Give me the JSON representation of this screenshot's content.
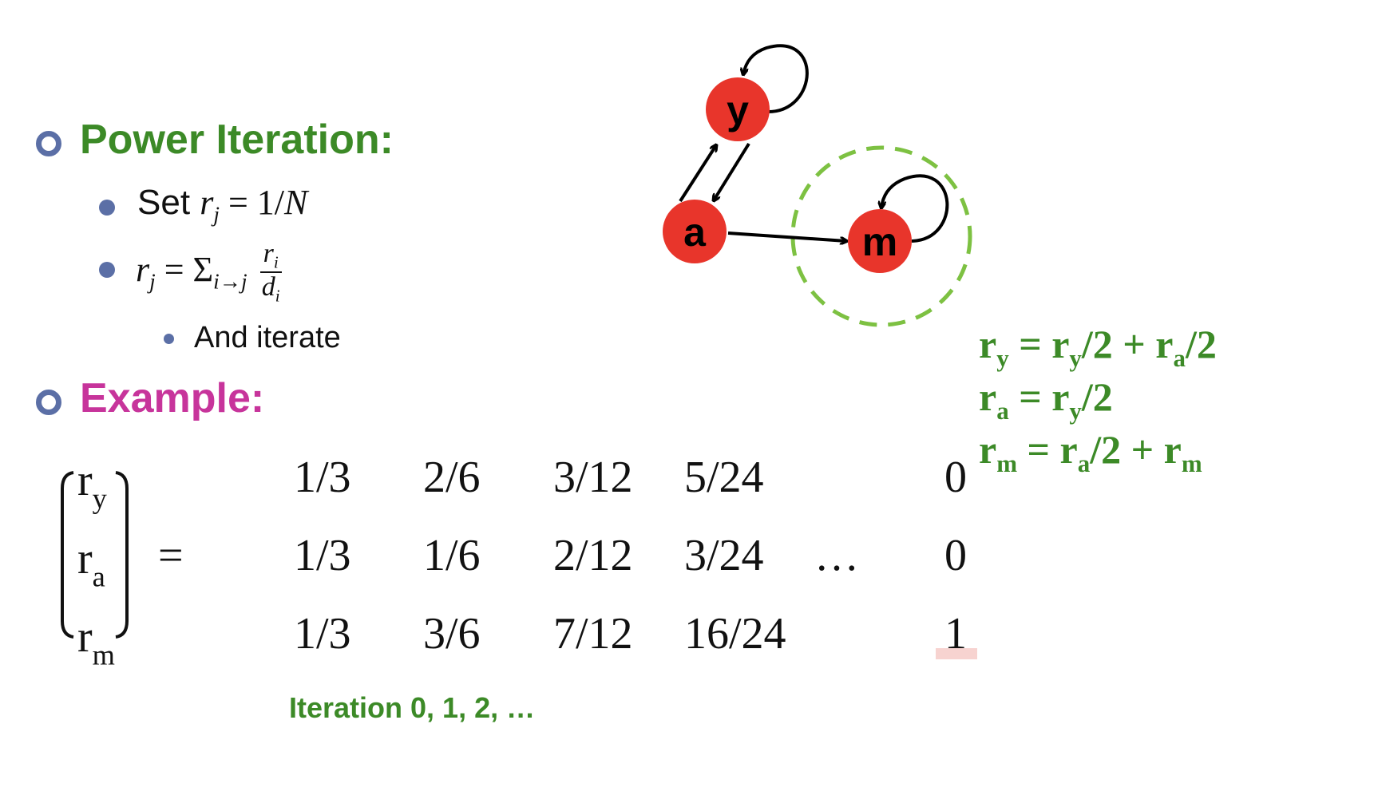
{
  "headings": {
    "power_iteration": "Power Iteration:",
    "example": "Example:"
  },
  "bullets": {
    "set_prefix": "Set ",
    "set_formula": {
      "var": "r",
      "sub": "j",
      "rest": " = 1/",
      "N": "N"
    },
    "update_formula": {
      "lhs": "r",
      "lhs_sub": "j",
      "eq": " = ",
      "sum": "Σ",
      "sum_sub": "i→j",
      "num": "r",
      "num_sub": "i",
      "den": "d",
      "den_sub": "i"
    },
    "and_iterate": "And iterate"
  },
  "graph": {
    "nodes": [
      {
        "id": "y",
        "label": "y"
      },
      {
        "id": "a",
        "label": "a"
      },
      {
        "id": "m",
        "label": "m"
      }
    ],
    "edges": [
      {
        "from": "y",
        "to": "y"
      },
      {
        "from": "y",
        "to": "a"
      },
      {
        "from": "a",
        "to": "y"
      },
      {
        "from": "a",
        "to": "m"
      },
      {
        "from": "m",
        "to": "m"
      }
    ],
    "node_color": "#e8352b",
    "highlight_color": "#7dc142"
  },
  "equations": [
    {
      "lhs": "r",
      "lhs_sub": "y",
      "rhs": [
        {
          "t": "r",
          "s": "y"
        },
        {
          "t": "/2 + "
        },
        {
          "t": "r",
          "s": "a"
        },
        {
          "t": "/2"
        }
      ]
    },
    {
      "lhs": "r",
      "lhs_sub": "a",
      "rhs": [
        {
          "t": "r",
          "s": "y"
        },
        {
          "t": "/2"
        }
      ]
    },
    {
      "lhs": "r",
      "lhs_sub": "m",
      "rhs": [
        {
          "t": "r",
          "s": "a"
        },
        {
          "t": "/2 + "
        },
        {
          "t": "r",
          "s": "m"
        }
      ]
    }
  ],
  "vector": {
    "labels": [
      {
        "t": "r",
        "s": "y"
      },
      {
        "t": "r",
        "s": "a"
      },
      {
        "t": "r",
        "s": "m"
      }
    ],
    "equals": "="
  },
  "iterations": {
    "rows": [
      [
        "1/3",
        "2/6",
        "3/12",
        "5/24",
        "0"
      ],
      [
        "1/3",
        "1/6",
        "2/12",
        "3/24",
        "0"
      ],
      [
        "1/3",
        "3/6",
        "7/12",
        "16/24",
        "1"
      ]
    ],
    "ellipsis": "…",
    "caption": "Iteration 0, 1, 2, …"
  },
  "colors": {
    "green": "#3c8a27",
    "magenta": "#c7349b",
    "bullet": "#5b6fa6"
  }
}
